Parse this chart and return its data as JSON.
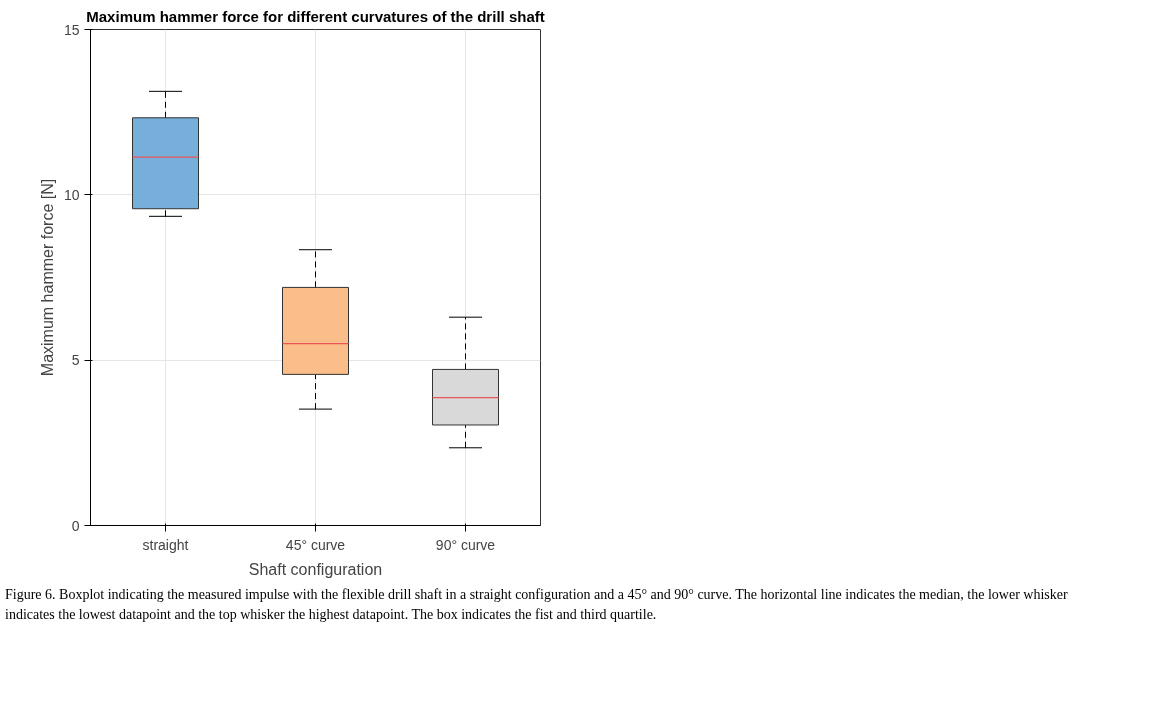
{
  "chart_data": {
    "type": "box",
    "title": "Maximum hammer force for different curvatures of the drill shaft",
    "xlabel": "Shaft configuration",
    "ylabel": "Maximum hammer force [N]",
    "categories": [
      "straight",
      "45° curve",
      "90° curve"
    ],
    "boxes": [
      {
        "low": 9.35,
        "q1": 9.58,
        "median": 11.14,
        "q3": 12.33,
        "high": 13.13
      },
      {
        "low": 3.52,
        "q1": 4.57,
        "median": 5.5,
        "q3": 7.2,
        "high": 8.34
      },
      {
        "low": 2.35,
        "q1": 3.04,
        "median": 3.87,
        "q3": 4.72,
        "high": 6.3
      }
    ],
    "colors": [
      "#77afdb",
      "#fbbd8a",
      "#d9d9d9"
    ],
    "ylim": [
      0,
      15
    ],
    "yticks": [
      0,
      5,
      10,
      15
    ],
    "grid": true,
    "annotations": [
      "Figure 6. Boxplot indicating the measured impulse with the flexible drill shaft in a straight configuration and a 45° and 90° curve. The horizontal line indicates the median, the lower whisker indicates the lowest datapoint and the top whisker the highest datapoint. The box indicates the fist and third quartile."
    ]
  }
}
